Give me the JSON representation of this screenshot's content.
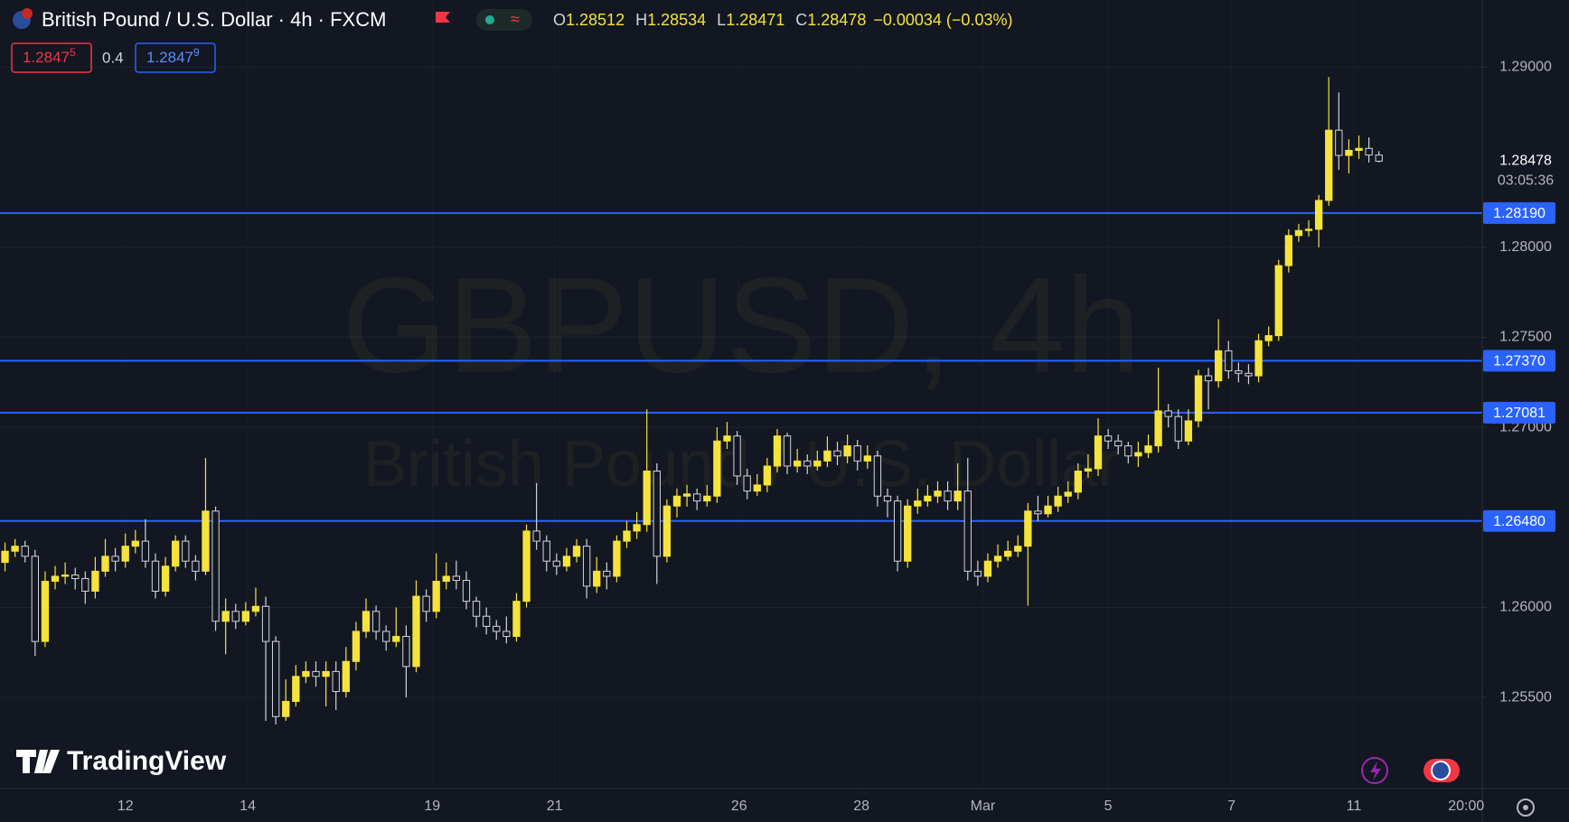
{
  "chart_data": {
    "type": "candlestick",
    "title": "British Pound / U.S. Dollar · 4h · FXCM",
    "readout": [
      {
        "key": "O",
        "value": "1.28512"
      },
      {
        "key": "H",
        "value": "1.28534"
      },
      {
        "key": "L",
        "value": "1.28471"
      },
      {
        "key": "C",
        "value": "1.28478"
      }
    ],
    "change": "−0.00034 (−0.03%)",
    "bid": {
      "main": "1.2847",
      "pip": "5"
    },
    "spread": "0.4",
    "ask": {
      "main": "1.2847",
      "pip": "9"
    },
    "watermark": {
      "symbol": "GBPUSD, 4h",
      "description": "British Pound / U.S. Dollar"
    },
    "brand": "TradingView",
    "countdown": "03:05:36",
    "up_color": "#f5e33b",
    "down_color": "#d1d4dc",
    "level_color": "#2962ff",
    "grid": true,
    "xlim": [
      -0.5,
      147.3
    ],
    "ylim": [
      1.24994,
      1.29373
    ],
    "yticks": [
      {
        "value": 1.29,
        "label": "1.29000"
      },
      {
        "value": 1.28,
        "label": "1.28000"
      },
      {
        "value": 1.275,
        "label": "1.27500"
      },
      {
        "value": 1.27,
        "label": "1.27000"
      },
      {
        "value": 1.26,
        "label": "1.26000"
      },
      {
        "value": 1.255,
        "label": "1.25500"
      }
    ],
    "xticks": [
      12,
      {
        "value": 24.2,
        "label": "14"
      },
      {
        "value": 42.6,
        "label": "19"
      },
      {
        "value": 54.8,
        "label": "21"
      },
      {
        "value": 73.2,
        "label": "26"
      },
      {
        "value": 85.4,
        "label": "28"
      },
      {
        "value": 97.5,
        "label": "Mar"
      },
      {
        "value": 110,
        "label": "5"
      },
      {
        "value": 122.3,
        "label": "7"
      },
      {
        "value": 134.5,
        "label": "11"
      },
      {
        "value": 145.7,
        "label": "20:00"
      }
    ],
    "levels": [
      {
        "value": 1.2819,
        "label": "1.28190"
      },
      {
        "value": 1.2737,
        "label": "1.27370"
      },
      {
        "value": 1.27081,
        "label": "1.27081"
      },
      {
        "value": 1.2648,
        "label": "1.26480"
      }
    ],
    "open": [
      1.2625,
      1.26312,
      1.2634,
      1.26284,
      1.25811,
      1.26145,
      1.26173,
      1.2618,
      1.2616,
      1.2609,
      1.26201,
      1.26284,
      1.26257,
      1.2634,
      1.26368,
      1.26257,
      1.2609,
      1.26229,
      1.26368,
      1.26257,
      1.26201,
      1.26535,
      1.25923,
      1.25978,
      1.25923,
      1.25978,
      1.26006,
      1.25811,
      1.25394,
      1.25478,
      1.25617,
      1.25644,
      1.25617,
      1.25644,
      1.25533,
      1.257,
      1.25867,
      1.25978,
      1.25867,
      1.25811,
      1.25839,
      1.25672,
      1.26062,
      1.25978,
      1.26145,
      1.26173,
      1.2615,
      1.26034,
      1.25951,
      1.25895,
      1.25867,
      1.25839,
      1.26034,
      1.26424,
      1.26368,
      1.26257,
      1.26229,
      1.26284,
      1.2634,
      1.26118,
      1.26201,
      1.26173,
      1.26368,
      1.26424,
      1.2646,
      1.26757,
      1.26284,
      1.26563,
      1.26618,
      1.2663,
      1.26591,
      1.26618,
      1.26924,
      1.26952,
      1.2673,
      1.26646,
      1.2668,
      1.26785,
      1.26952,
      1.26785,
      1.26813,
      1.26785,
      1.26813,
      1.26869,
      1.26841,
      1.26897,
      1.26813,
      1.26841,
      1.26618,
      1.26591,
      1.26257,
      1.26563,
      1.26591,
      1.26618,
      1.26646,
      1.26591,
      1.26646,
      1.26201,
      1.26173,
      1.26257,
      1.26284,
      1.26312,
      1.2634,
      1.26535,
      1.2652,
      1.26563,
      1.26618,
      1.2664,
      1.26757,
      1.2677,
      1.26952,
      1.26924,
      1.26897,
      1.26841,
      1.2686,
      1.26897,
      1.27091,
      1.2706,
      1.26924,
      1.27036,
      1.27286,
      1.27258,
      1.27425,
      1.27314,
      1.273,
      1.27286,
      1.27481,
      1.27509,
      1.27898,
      1.28065,
      1.28093,
      1.281,
      1.2826,
      1.2865,
      1.2851,
      1.28538,
      1.28549,
      1.28512
    ],
    "high": [
      1.2636,
      1.2638,
      1.2637,
      1.2632,
      1.262,
      1.2623,
      1.2625,
      1.2622,
      1.262,
      1.2628,
      1.2638,
      1.2633,
      1.2641,
      1.2643,
      1.2649,
      1.263,
      1.2628,
      1.264,
      1.264,
      1.2629,
      1.2683,
      1.2656,
      1.2605,
      1.2602,
      1.2603,
      1.2611,
      1.2606,
      1.2584,
      1.256,
      1.2568,
      1.257,
      1.257,
      1.257,
      1.257,
      1.2578,
      1.2592,
      1.2605,
      1.2601,
      1.259,
      1.26,
      1.259,
      1.2615,
      1.261,
      1.263,
      1.2625,
      1.2626,
      1.262,
      1.2606,
      1.26,
      1.2593,
      1.2595,
      1.2608,
      1.2646,
      1.2669,
      1.264,
      1.263,
      1.2633,
      1.2638,
      1.2638,
      1.2628,
      1.2625,
      1.264,
      1.2648,
      1.2653,
      1.271,
      1.268,
      1.266,
      1.2666,
      1.2668,
      1.2666,
      1.2668,
      1.27,
      1.2703,
      1.2698,
      1.2677,
      1.2674,
      1.2683,
      1.2699,
      1.2697,
      1.2688,
      1.2685,
      1.2687,
      1.2695,
      1.2692,
      1.2696,
      1.2693,
      1.269,
      1.2687,
      1.2666,
      1.2662,
      1.266,
      1.2666,
      1.2668,
      1.267,
      1.267,
      1.268,
      1.2683,
      1.2626,
      1.263,
      1.2635,
      1.2637,
      1.264,
      1.2658,
      1.2662,
      1.2662,
      1.2667,
      1.267,
      1.268,
      1.2685,
      1.2705,
      1.2699,
      1.2696,
      1.2692,
      1.2692,
      1.2696,
      1.2733,
      1.2713,
      1.271,
      1.271,
      1.2732,
      1.2733,
      1.276,
      1.2748,
      1.2736,
      1.2735,
      1.2752,
      1.2756,
      1.2793,
      1.281,
      1.2813,
      1.2815,
      1.2829,
      1.28945,
      1.2886,
      1.286,
      1.2862,
      1.2861,
      1.28534
    ],
    "low": [
      1.262,
      1.2628,
      1.2625,
      1.2573,
      1.2578,
      1.261,
      1.2613,
      1.261,
      1.2602,
      1.2605,
      1.2617,
      1.262,
      1.2622,
      1.263,
      1.2622,
      1.2605,
      1.2606,
      1.262,
      1.2622,
      1.2615,
      1.2618,
      1.2587,
      1.2574,
      1.2588,
      1.259,
      1.2595,
      1.2537,
      1.2535,
      1.2537,
      1.2545,
      1.2558,
      1.2556,
      1.2545,
      1.2543,
      1.255,
      1.2565,
      1.2583,
      1.2582,
      1.2576,
      1.2578,
      1.255,
      1.2564,
      1.2592,
      1.2594,
      1.261,
      1.261,
      1.2599,
      1.2589,
      1.2585,
      1.2582,
      1.258,
      1.2581,
      1.26,
      1.2632,
      1.262,
      1.2618,
      1.262,
      1.2625,
      1.2605,
      1.2608,
      1.261,
      1.2614,
      1.2633,
      1.2638,
      1.2642,
      1.2613,
      1.2625,
      1.265,
      1.2656,
      1.2654,
      1.2656,
      1.2658,
      1.2688,
      1.2668,
      1.266,
      1.2662,
      1.2664,
      1.2675,
      1.2674,
      1.2675,
      1.2674,
      1.2676,
      1.2678,
      1.2679,
      1.268,
      1.2676,
      1.2677,
      1.2656,
      1.265,
      1.262,
      1.2622,
      1.2652,
      1.2656,
      1.2658,
      1.2654,
      1.2654,
      1.2615,
      1.2612,
      1.2614,
      1.2622,
      1.2626,
      1.2628,
      1.2601,
      1.2648,
      1.265,
      1.2653,
      1.2658,
      1.266,
      1.2672,
      1.2673,
      1.2688,
      1.2685,
      1.268,
      1.2678,
      1.2683,
      1.2686,
      1.27,
      1.2688,
      1.269,
      1.27,
      1.271,
      1.2722,
      1.2727,
      1.2725,
      1.2724,
      1.2725,
      1.2745,
      1.2748,
      1.2786,
      1.2803,
      1.2806,
      1.28,
      1.2823,
      1.2843,
      1.2841,
      1.2849,
      1.2847,
      1.28471
    ],
    "close": [
      1.26312,
      1.2634,
      1.26284,
      1.25811,
      1.26145,
      1.26173,
      1.2618,
      1.2616,
      1.2609,
      1.26201,
      1.26284,
      1.26257,
      1.2634,
      1.26368,
      1.26257,
      1.2609,
      1.26229,
      1.26368,
      1.26257,
      1.26201,
      1.26535,
      1.25923,
      1.25978,
      1.25923,
      1.25978,
      1.26006,
      1.25811,
      1.25394,
      1.25478,
      1.25617,
      1.25644,
      1.25617,
      1.25644,
      1.25533,
      1.257,
      1.25867,
      1.25978,
      1.25867,
      1.25811,
      1.25839,
      1.25672,
      1.26062,
      1.25978,
      1.26145,
      1.26173,
      1.2615,
      1.26034,
      1.25951,
      1.25895,
      1.25867,
      1.25839,
      1.26034,
      1.26424,
      1.26368,
      1.26257,
      1.26229,
      1.26284,
      1.2634,
      1.26118,
      1.26201,
      1.26173,
      1.26368,
      1.26424,
      1.2646,
      1.26757,
      1.26284,
      1.26563,
      1.26618,
      1.2663,
      1.26591,
      1.26618,
      1.26924,
      1.26952,
      1.2673,
      1.26646,
      1.2668,
      1.26785,
      1.26952,
      1.26785,
      1.26813,
      1.26785,
      1.26813,
      1.26869,
      1.26841,
      1.26897,
      1.26813,
      1.26841,
      1.26618,
      1.26591,
      1.26257,
      1.26563,
      1.26591,
      1.26618,
      1.26646,
      1.26591,
      1.26646,
      1.26201,
      1.26173,
      1.26257,
      1.26284,
      1.26312,
      1.2634,
      1.26535,
      1.2652,
      1.26563,
      1.26618,
      1.2664,
      1.26757,
      1.2677,
      1.26952,
      1.26924,
      1.26897,
      1.26841,
      1.2686,
      1.26897,
      1.27091,
      1.2706,
      1.26924,
      1.27036,
      1.27286,
      1.27258,
      1.27425,
      1.27314,
      1.273,
      1.27286,
      1.27481,
      1.27509,
      1.27898,
      1.28065,
      1.28093,
      1.281,
      1.2826,
      1.2865,
      1.2851,
      1.28538,
      1.28549,
      1.28512,
      1.28478
    ]
  }
}
